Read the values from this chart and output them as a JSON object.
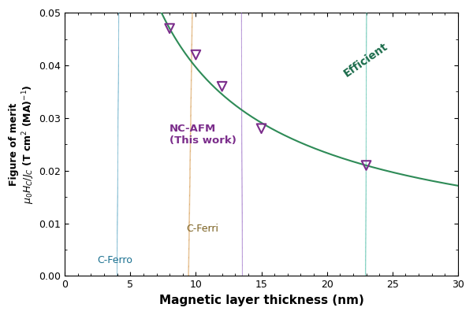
{
  "xlabel": "Magnetic layer thickness (nm)",
  "ylabel_top": "Figure of merit",
  "ylabel_bot": "$\\mu_0H_C/J_C$ (T cm$^2$ (MA)$^{-1}$)",
  "xlim": [
    0,
    30
  ],
  "ylim": [
    0.0,
    0.05
  ],
  "yticks": [
    0.0,
    0.01,
    0.02,
    0.03,
    0.04,
    0.05
  ],
  "xticks": [
    0,
    5,
    10,
    15,
    20,
    25,
    30
  ],
  "data_x": [
    8,
    10,
    12,
    15,
    23
  ],
  "data_y": [
    0.047,
    0.042,
    0.036,
    0.028,
    0.021
  ],
  "curve_color": "#2e8b57",
  "marker_edgecolor": "#7b2d8b",
  "nc_afm_color": "#7b2d8b",
  "efficient_color": "#1a6b4a",
  "c_ferri_text_color": "#7a6020",
  "c_ferro_text_color": "#1a7090",
  "purple_face": "#c090e0",
  "purple_edge": "#9060c0",
  "teal_face": "#80d8c8",
  "teal_edge": "#40b8a0",
  "orange_face": "#f0c080",
  "orange_edge": "#d09040",
  "cyan_face": "#90d0e0",
  "cyan_edge": "#50a0c0",
  "background": "#ffffff"
}
